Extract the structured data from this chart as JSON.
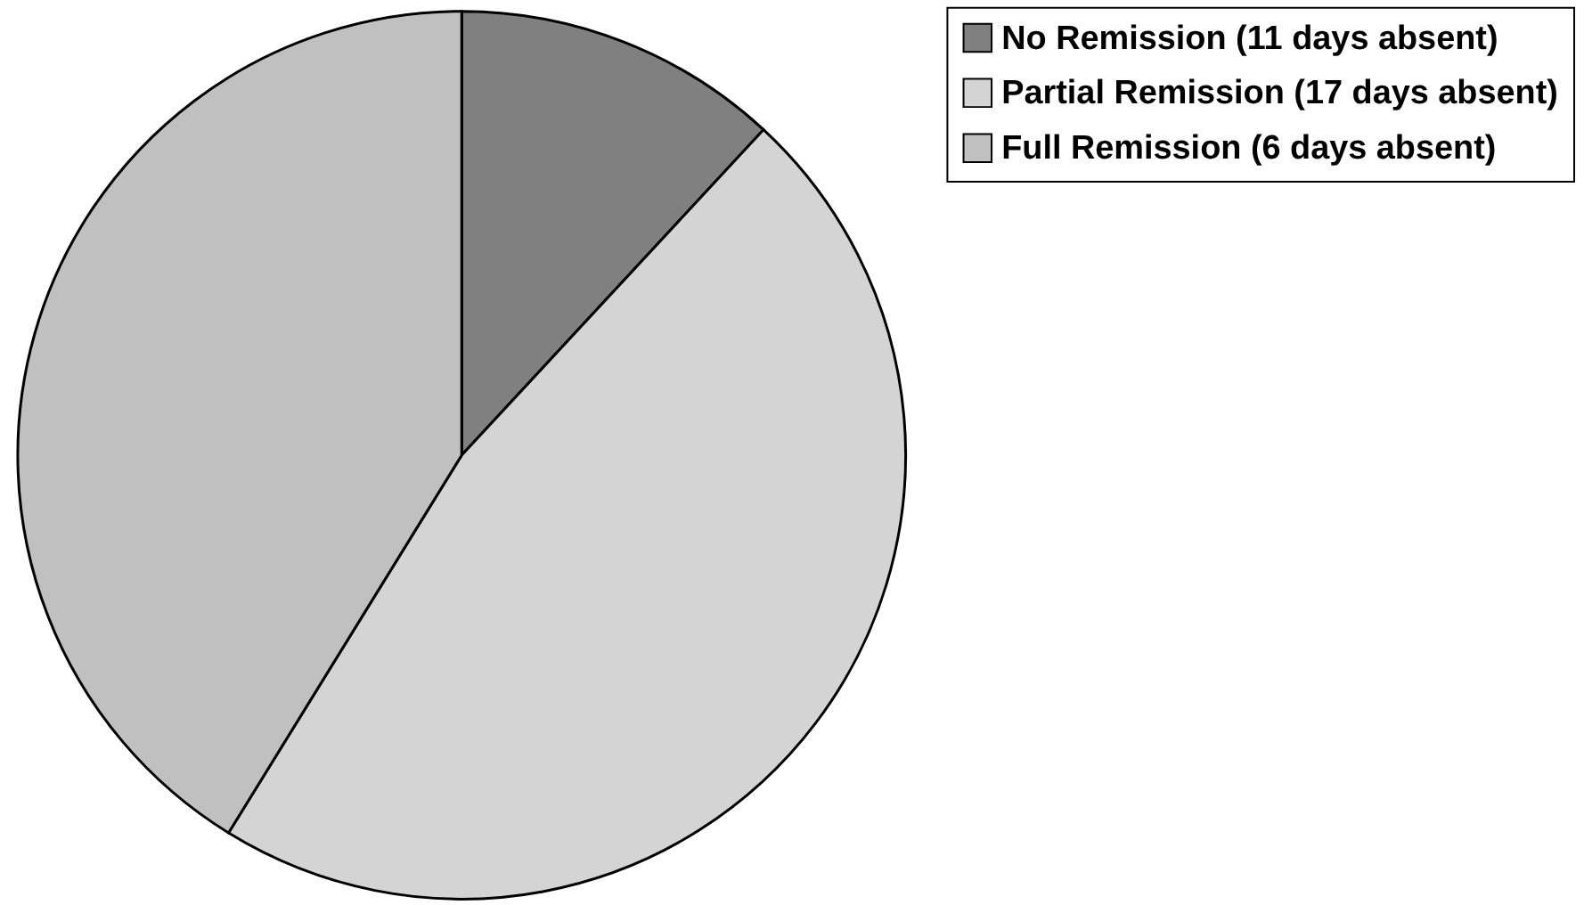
{
  "chart_data": {
    "type": "pie",
    "categories": [
      "No Remission (11 days absent)",
      "Partial Remission (17 days absent)",
      "Full Remission (6 days absent)"
    ],
    "values": [
      11.9,
      46.9,
      41.2
    ],
    "colors": [
      "#808080",
      "#d4d4d4",
      "#c0c0c0"
    ],
    "legend": "right"
  }
}
